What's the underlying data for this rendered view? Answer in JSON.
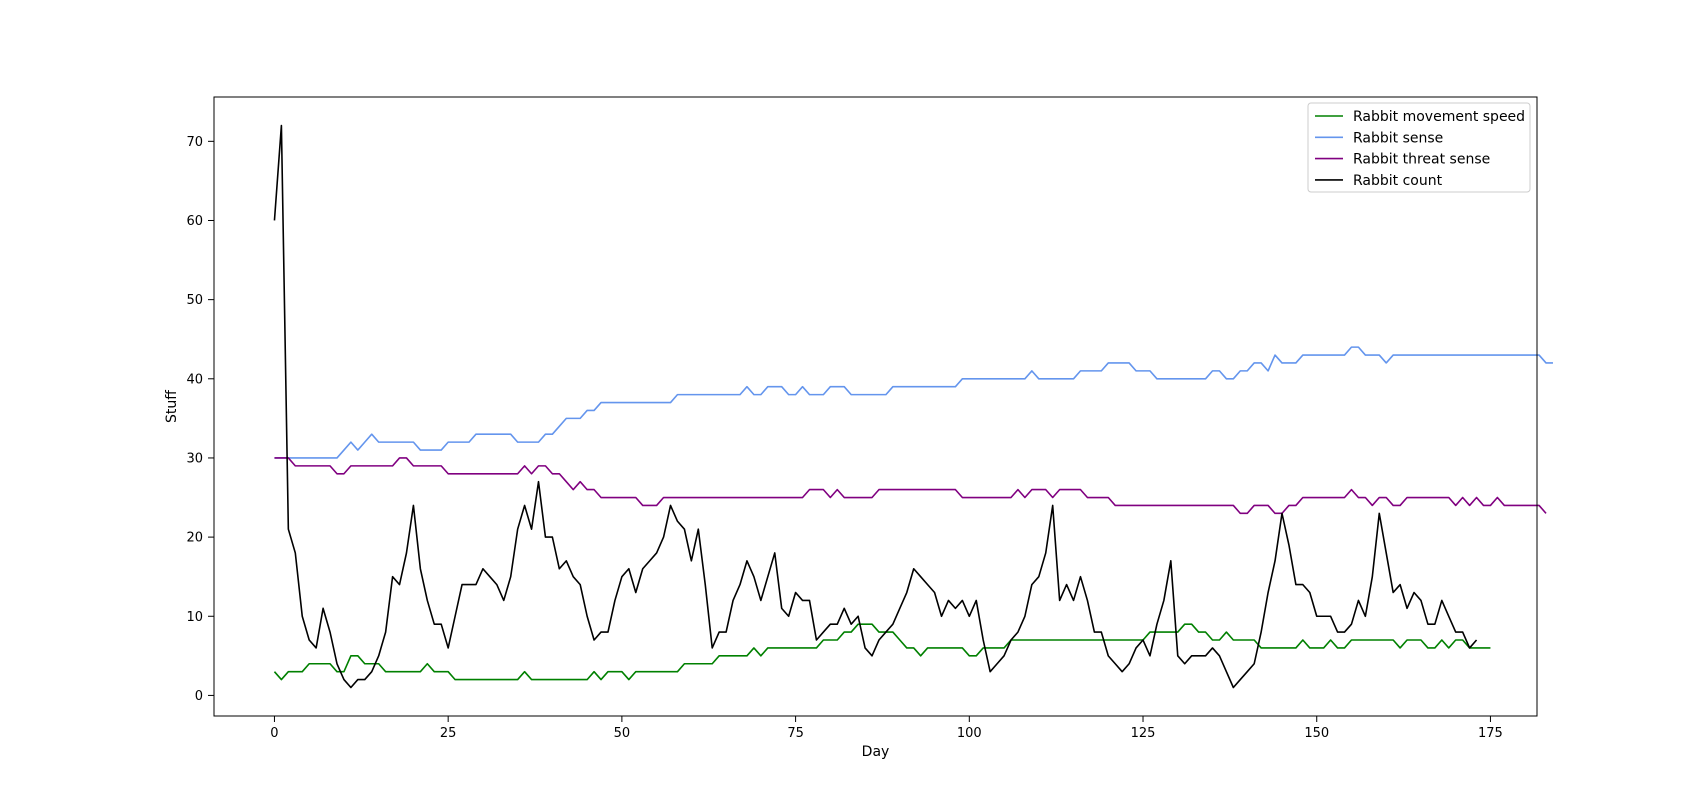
{
  "chart_data": {
    "type": "line",
    "title": "",
    "xlabel": "Day",
    "ylabel": "Stuff",
    "xlim": [
      -8.7,
      181.7
    ],
    "ylim": [
      -2.6,
      75.6
    ],
    "xticks": [
      0,
      25,
      50,
      75,
      100,
      125,
      150,
      175
    ],
    "yticks": [
      0,
      10,
      20,
      30,
      40,
      50,
      60,
      70
    ],
    "grid": false,
    "legend_position": "top-right",
    "series": [
      {
        "name": "Rabbit movement speed",
        "color": "#008000",
        "x_start": 0,
        "values": [
          3,
          2,
          3,
          3,
          3,
          4,
          4,
          4,
          4,
          3,
          3,
          5,
          5,
          4,
          4,
          4,
          3,
          3,
          3,
          3,
          3,
          3,
          4,
          3,
          3,
          3,
          2,
          2,
          2,
          2,
          2,
          2,
          2,
          2,
          2,
          2,
          3,
          2,
          2,
          2,
          2,
          2,
          2,
          2,
          2,
          2,
          3,
          2,
          3,
          3,
          3,
          2,
          3,
          3,
          3,
          3,
          3,
          3,
          3,
          4,
          4,
          4,
          4,
          4,
          5,
          5,
          5,
          5,
          5,
          6,
          5,
          6,
          6,
          6,
          6,
          6,
          6,
          6,
          6,
          7,
          7,
          7,
          8,
          8,
          9,
          9,
          9,
          8,
          8,
          8,
          7,
          6,
          6,
          5,
          6,
          6,
          6,
          6,
          6,
          6,
          5,
          5,
          6,
          6,
          6,
          6,
          7,
          7,
          7,
          7,
          7,
          7,
          7,
          7,
          7,
          7,
          7,
          7,
          7,
          7,
          7,
          7,
          7,
          7,
          7,
          7,
          8,
          8,
          8,
          8,
          8,
          9,
          9,
          8,
          8,
          7,
          7,
          8,
          7,
          7,
          7,
          7,
          6,
          6,
          6,
          6,
          6,
          6,
          7,
          6,
          6,
          6,
          7,
          6,
          6,
          7,
          7,
          7,
          7,
          7,
          7,
          7,
          6,
          7,
          7,
          7,
          6,
          6,
          7,
          6,
          7,
          7,
          6,
          6,
          6,
          6
        ]
      },
      {
        "name": "Rabbit sense",
        "color": "#6495ED",
        "x_start": 0,
        "values": [
          30,
          30,
          30,
          30,
          30,
          30,
          30,
          30,
          30,
          30,
          31,
          32,
          31,
          32,
          33,
          32,
          32,
          32,
          32,
          32,
          32,
          31,
          31,
          31,
          31,
          32,
          32,
          32,
          32,
          33,
          33,
          33,
          33,
          33,
          33,
          32,
          32,
          32,
          32,
          33,
          33,
          34,
          35,
          35,
          35,
          36,
          36,
          37,
          37,
          37,
          37,
          37,
          37,
          37,
          37,
          37,
          37,
          37,
          38,
          38,
          38,
          38,
          38,
          38,
          38,
          38,
          38,
          38,
          39,
          38,
          38,
          39,
          39,
          39,
          38,
          38,
          39,
          38,
          38,
          38,
          39,
          39,
          39,
          38,
          38,
          38,
          38,
          38,
          38,
          39,
          39,
          39,
          39,
          39,
          39,
          39,
          39,
          39,
          39,
          40,
          40,
          40,
          40,
          40,
          40,
          40,
          40,
          40,
          40,
          41,
          40,
          40,
          40,
          40,
          40,
          40,
          41,
          41,
          41,
          41,
          42,
          42,
          42,
          42,
          41,
          41,
          41,
          40,
          40,
          40,
          40,
          40,
          40,
          40,
          40,
          41,
          41,
          40,
          40,
          41,
          41,
          42,
          42,
          41,
          43,
          42,
          42,
          42,
          43,
          43,
          43,
          43,
          43,
          43,
          43,
          44,
          44,
          43,
          43,
          43,
          42,
          43,
          43,
          43,
          43,
          43,
          43,
          43,
          43,
          43,
          43,
          43,
          43,
          43,
          43,
          43,
          43,
          43,
          43,
          43,
          43,
          43,
          43,
          42,
          42
        ]
      },
      {
        "name": "Rabbit threat sense",
        "color": "#800080",
        "x_start": 0,
        "values": [
          30,
          30,
          30,
          29,
          29,
          29,
          29,
          29,
          29,
          28,
          28,
          29,
          29,
          29,
          29,
          29,
          29,
          29,
          30,
          30,
          29,
          29,
          29,
          29,
          29,
          28,
          28,
          28,
          28,
          28,
          28,
          28,
          28,
          28,
          28,
          28,
          29,
          28,
          29,
          29,
          28,
          28,
          27,
          26,
          27,
          26,
          26,
          25,
          25,
          25,
          25,
          25,
          25,
          24,
          24,
          24,
          25,
          25,
          25,
          25,
          25,
          25,
          25,
          25,
          25,
          25,
          25,
          25,
          25,
          25,
          25,
          25,
          25,
          25,
          25,
          25,
          25,
          26,
          26,
          26,
          25,
          26,
          25,
          25,
          25,
          25,
          25,
          26,
          26,
          26,
          26,
          26,
          26,
          26,
          26,
          26,
          26,
          26,
          26,
          25,
          25,
          25,
          25,
          25,
          25,
          25,
          25,
          26,
          25,
          26,
          26,
          26,
          25,
          26,
          26,
          26,
          26,
          25,
          25,
          25,
          25,
          24,
          24,
          24,
          24,
          24,
          24,
          24,
          24,
          24,
          24,
          24,
          24,
          24,
          24,
          24,
          24,
          24,
          24,
          23,
          23,
          24,
          24,
          24,
          23,
          23,
          24,
          24,
          25,
          25,
          25,
          25,
          25,
          25,
          25,
          26,
          25,
          25,
          24,
          25,
          25,
          24,
          24,
          25,
          25,
          25,
          25,
          25,
          25,
          25,
          24,
          25,
          24,
          25,
          24,
          24,
          25,
          24,
          24,
          24,
          24,
          24,
          24,
          23
        ]
      },
      {
        "name": "Rabbit count",
        "color": "#000000",
        "x_start": 0,
        "values": [
          60,
          72,
          21,
          18,
          10,
          7,
          6,
          11,
          8,
          4,
          2,
          1,
          2,
          2,
          3,
          5,
          8,
          15,
          14,
          18,
          24,
          16,
          12,
          9,
          9,
          6,
          10,
          14,
          14,
          14,
          16,
          15,
          14,
          12,
          15,
          21,
          24,
          21,
          27,
          20,
          20,
          16,
          17,
          15,
          14,
          10,
          7,
          8,
          8,
          12,
          15,
          16,
          13,
          16,
          17,
          18,
          20,
          24,
          22,
          21,
          17,
          21,
          14,
          6,
          8,
          8,
          12,
          14,
          17,
          15,
          12,
          15,
          18,
          11,
          10,
          13,
          12,
          12,
          7,
          8,
          9,
          9,
          11,
          9,
          10,
          6,
          5,
          7,
          8,
          9,
          11,
          13,
          16,
          15,
          14,
          13,
          10,
          12,
          11,
          12,
          10,
          12,
          7,
          3,
          4,
          5,
          7,
          8,
          10,
          14,
          15,
          18,
          24,
          12,
          14,
          12,
          15,
          12,
          8,
          8,
          5,
          4,
          3,
          4,
          6,
          7,
          5,
          9,
          12,
          17,
          5,
          4,
          5,
          5,
          5,
          6,
          5,
          3,
          1,
          2,
          3,
          4,
          8,
          13,
          17,
          23,
          19,
          14,
          14,
          13,
          10,
          10,
          10,
          8,
          8,
          9,
          12,
          10,
          15,
          23,
          18,
          13,
          14,
          11,
          13,
          12,
          9,
          9,
          12,
          10,
          8,
          8,
          6,
          7
        ]
      }
    ]
  }
}
